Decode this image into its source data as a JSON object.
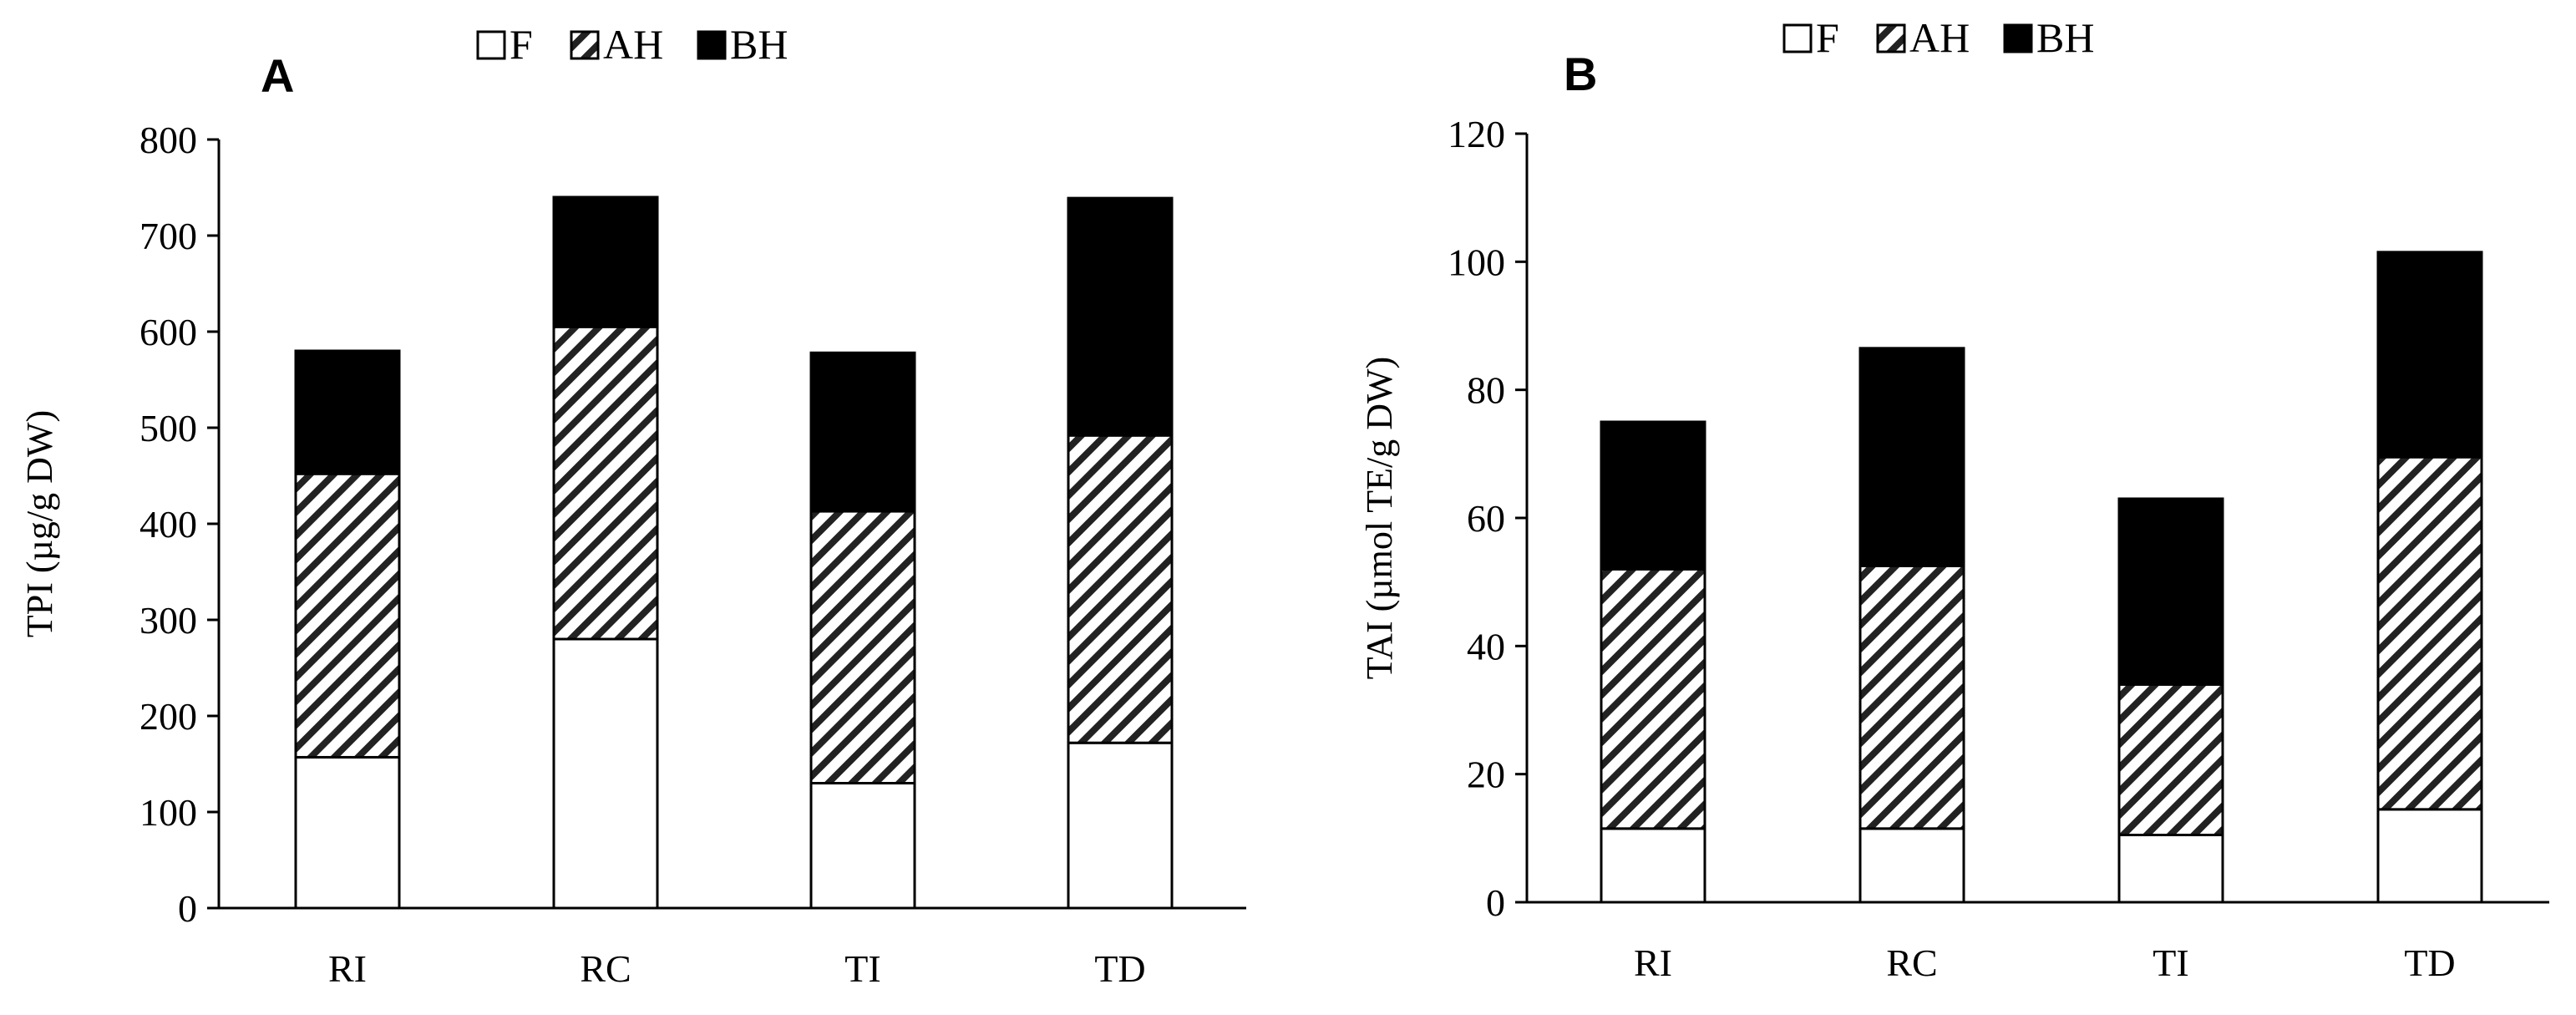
{
  "chart_data": [
    {
      "type": "bar",
      "stacked": true,
      "panel_label": "A",
      "categories": [
        "RI",
        "RC",
        "TI",
        "TD"
      ],
      "series": [
        {
          "name": "F",
          "values": [
            157,
            280,
            130,
            172
          ]
        },
        {
          "name": "AH",
          "values": [
            295,
            325,
            283,
            320
          ]
        },
        {
          "name": "BH",
          "values": [
            128,
            135,
            165,
            247
          ]
        }
      ],
      "ylabel": "TPI (µg/g DW)",
      "xlabel": "",
      "ylim": [
        0,
        800
      ],
      "yticks": [
        "0",
        "100",
        "200",
        "300",
        "400",
        "500",
        "600",
        "700",
        "800"
      ],
      "legend": [
        "F",
        "AH",
        "BH"
      ],
      "legend_position": "top",
      "grid": false
    },
    {
      "type": "bar",
      "stacked": true,
      "panel_label": "B",
      "categories": [
        "RI",
        "RC",
        "TI",
        "TD"
      ],
      "series": [
        {
          "name": "F",
          "values": [
            11.5,
            11.5,
            10.5,
            14.5
          ]
        },
        {
          "name": "AH",
          "values": [
            40.5,
            41,
            23.5,
            55
          ]
        },
        {
          "name": "BH",
          "values": [
            23,
            34,
            29,
            32
          ]
        }
      ],
      "ylabel": "TAI (µmol TE/g DW)",
      "xlabel": "",
      "ylim": [
        0,
        120
      ],
      "yticks": [
        "0",
        "20",
        "40",
        "60",
        "80",
        "100",
        "120"
      ],
      "legend": [
        "F",
        "AH",
        "BH"
      ],
      "legend_position": "top",
      "grid": false
    }
  ],
  "colors": {
    "F": "#ffffff",
    "AH": "hatched",
    "BH": "#000000",
    "outline": "#000000"
  }
}
